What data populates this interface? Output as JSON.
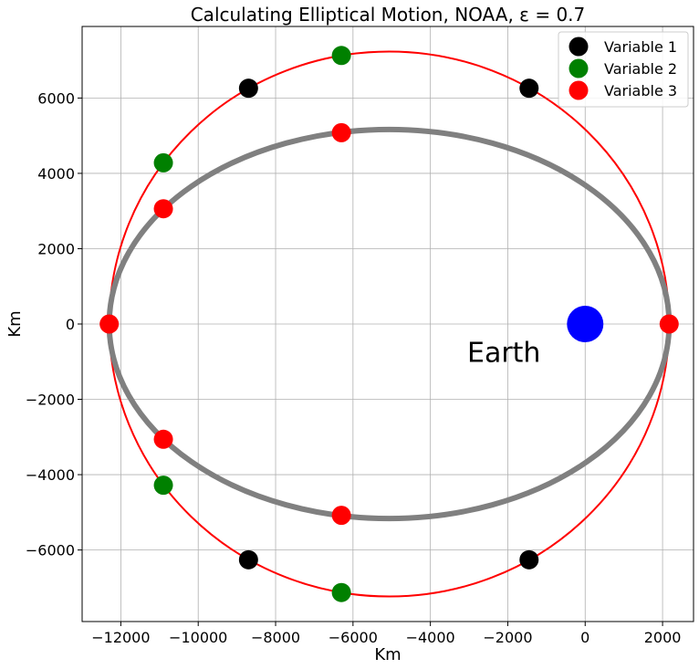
{
  "chart_data": {
    "type": "scatter",
    "title": "Calculating Elliptical Motion, NOAA, ε = 0.7",
    "xlabel": "Km",
    "ylabel": "Km",
    "xlim": [
      -13000,
      2800
    ],
    "ylim": [
      -7900,
      7900
    ],
    "x_ticks": [
      -12000,
      -10000,
      -8000,
      -6000,
      -4000,
      -2000,
      0,
      2000
    ],
    "y_ticks": [
      -6000,
      -4000,
      -2000,
      0,
      2000,
      4000,
      6000
    ],
    "x_tick_labels": [
      "−12000",
      "−10000",
      "−8000",
      "−6000",
      "−4000",
      "−2000",
      "0",
      "2000"
    ],
    "y_tick_labels": [
      "−6000",
      "−4000",
      "−2000",
      "0",
      "2000",
      "4000",
      "6000"
    ],
    "grid": true,
    "legend_position": "top-right",
    "curves": {
      "orbit_ellipse": {
        "center": [
          -5065,
          0
        ],
        "a": 7235,
        "b": 5165,
        "color": "#808080"
      },
      "auxiliary_circle": {
        "center": [
          -5065,
          0
        ],
        "r": 7235,
        "color": "#ff0000"
      }
    },
    "earth": {
      "x": 0,
      "y": 0,
      "label": "Earth",
      "color": "#0000ff",
      "label_x": -2100,
      "label_y": -800
    },
    "series": [
      {
        "name": "Variable 1",
        "color": "#000000",
        "points": [
          [
            -8700,
            6260
          ],
          [
            -1450,
            6260
          ],
          [
            -8700,
            -6260
          ],
          [
            -1450,
            -6260
          ]
        ]
      },
      {
        "name": "Variable 2",
        "color": "#008000",
        "points": [
          [
            -6300,
            7130
          ],
          [
            -10900,
            4280
          ],
          [
            -10900,
            -4280
          ],
          [
            -6300,
            -7130
          ]
        ]
      },
      {
        "name": "Variable 3",
        "color": "#ff0000",
        "points": [
          [
            -12300,
            0
          ],
          [
            2170,
            0
          ],
          [
            -10900,
            3060
          ],
          [
            -10900,
            -3060
          ],
          [
            -6300,
            5080
          ],
          [
            -6300,
            -5080
          ]
        ]
      }
    ]
  }
}
